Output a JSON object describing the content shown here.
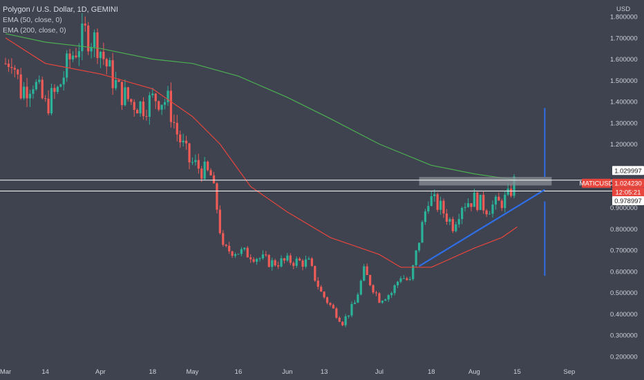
{
  "legend": {
    "symbol_title": "Polygon / U.S. Dollar, 1D, GEMINI",
    "ema50": "EMA (50, close, 0)",
    "ema200": "EMA (200, close, 0)"
  },
  "price_axis": {
    "currency": "USD",
    "ticks": [
      "1.800000",
      "1.700000",
      "1.600000",
      "1.500000",
      "1.400000",
      "1.300000",
      "1.200000",
      "0.900000",
      "0.800000",
      "0.700000",
      "0.600000",
      "0.500000",
      "0.400000",
      "0.300000",
      "0.200000"
    ]
  },
  "time_axis": {
    "ticks": [
      "Mar",
      "14",
      "Apr",
      "18",
      "May",
      "16",
      "Jun",
      "13",
      "Jul",
      "18",
      "Aug",
      "15",
      "Sep"
    ]
  },
  "price_labels": {
    "upper": "1.029997",
    "symbol": "MATICUSD",
    "last": "1.024230",
    "countdown": "12:05:21",
    "lower": "0.978997"
  },
  "colors": {
    "background": "#3f4350",
    "up": "#2bb39a",
    "down": "#ef5b57",
    "ema50": "#e8453c",
    "ema200": "#4caf50",
    "trendline": "#2f6ee6",
    "hline": "#ffffff",
    "zone": "#8a8d95"
  },
  "chart_data": {
    "type": "candlestick",
    "title": "Polygon / U.S. Dollar, 1D, GEMINI",
    "y_unit": "USD",
    "y_range": [
      0.18,
      1.82
    ],
    "x_range": [
      "2022-03-01",
      "2022-09-06"
    ],
    "horizontal_lines": [
      1.029997,
      0.978997
    ],
    "resistance_zone": [
      1.005,
      1.045
    ],
    "trendline": {
      "from": [
        "2022-07-14",
        0.625
      ],
      "to": [
        "2022-08-24",
        0.985
      ]
    },
    "vertical_marker_segments": [
      {
        "date": "2022-08-24",
        "from": 1.37,
        "to": 1.045
      },
      {
        "date": "2022-08-24",
        "from": 0.93,
        "to": 0.58
      }
    ],
    "ema50": [
      [
        "2022-03-01",
        1.7
      ],
      [
        "2022-03-14",
        1.58
      ],
      [
        "2022-04-01",
        1.53
      ],
      [
        "2022-04-18",
        1.46
      ],
      [
        "2022-05-01",
        1.33
      ],
      [
        "2022-05-10",
        1.2
      ],
      [
        "2022-05-20",
        1.0
      ],
      [
        "2022-06-01",
        0.88
      ],
      [
        "2022-06-15",
        0.76
      ],
      [
        "2022-07-01",
        0.68
      ],
      [
        "2022-07-08",
        0.62
      ],
      [
        "2022-07-18",
        0.62
      ],
      [
        "2022-08-01",
        0.71
      ],
      [
        "2022-08-10",
        0.76
      ],
      [
        "2022-08-15",
        0.81
      ]
    ],
    "ema200": [
      [
        "2022-03-01",
        1.72
      ],
      [
        "2022-03-14",
        1.68
      ],
      [
        "2022-04-01",
        1.65
      ],
      [
        "2022-04-18",
        1.6
      ],
      [
        "2022-05-01",
        1.58
      ],
      [
        "2022-05-16",
        1.52
      ],
      [
        "2022-06-01",
        1.42
      ],
      [
        "2022-06-15",
        1.32
      ],
      [
        "2022-07-01",
        1.2
      ],
      [
        "2022-07-18",
        1.1
      ],
      [
        "2022-08-01",
        1.06
      ],
      [
        "2022-08-15",
        1.03
      ]
    ],
    "anchors": [
      [
        "2022-03-01",
        1.58
      ],
      [
        "2022-03-03",
        1.62
      ],
      [
        "2022-03-06",
        1.45
      ],
      [
        "2022-03-10",
        1.5
      ],
      [
        "2022-03-14",
        1.38
      ],
      [
        "2022-03-18",
        1.45
      ],
      [
        "2022-03-22",
        1.6
      ],
      [
        "2022-03-27",
        1.72
      ],
      [
        "2022-03-31",
        1.68
      ],
      [
        "2022-04-03",
        1.57
      ],
      [
        "2022-04-07",
        1.45
      ],
      [
        "2022-04-11",
        1.4
      ],
      [
        "2022-04-15",
        1.38
      ],
      [
        "2022-04-19",
        1.42
      ],
      [
        "2022-04-23",
        1.4
      ],
      [
        "2022-04-26",
        1.25
      ],
      [
        "2022-04-30",
        1.12
      ],
      [
        "2022-05-04",
        1.08
      ],
      [
        "2022-05-07",
        1.05
      ],
      [
        "2022-05-09",
        0.9
      ],
      [
        "2022-05-11",
        0.7
      ],
      [
        "2022-05-14",
        0.7
      ],
      [
        "2022-05-20",
        0.68
      ],
      [
        "2022-05-27",
        0.64
      ],
      [
        "2022-06-02",
        0.65
      ],
      [
        "2022-06-08",
        0.64
      ],
      [
        "2022-06-12",
        0.5
      ],
      [
        "2022-06-16",
        0.42
      ],
      [
        "2022-06-19",
        0.36
      ],
      [
        "2022-06-23",
        0.45
      ],
      [
        "2022-06-26",
        0.6
      ],
      [
        "2022-07-01",
        0.47
      ],
      [
        "2022-07-05",
        0.5
      ],
      [
        "2022-07-08",
        0.58
      ],
      [
        "2022-07-11",
        0.55
      ],
      [
        "2022-07-14",
        0.75
      ],
      [
        "2022-07-17",
        0.95
      ],
      [
        "2022-07-21",
        0.9
      ],
      [
        "2022-07-25",
        0.82
      ],
      [
        "2022-07-28",
        0.92
      ],
      [
        "2022-08-01",
        0.94
      ],
      [
        "2022-08-05",
        0.9
      ],
      [
        "2022-08-09",
        0.92
      ],
      [
        "2022-08-12",
        0.95
      ],
      [
        "2022-08-14",
        1.02
      ]
    ]
  }
}
